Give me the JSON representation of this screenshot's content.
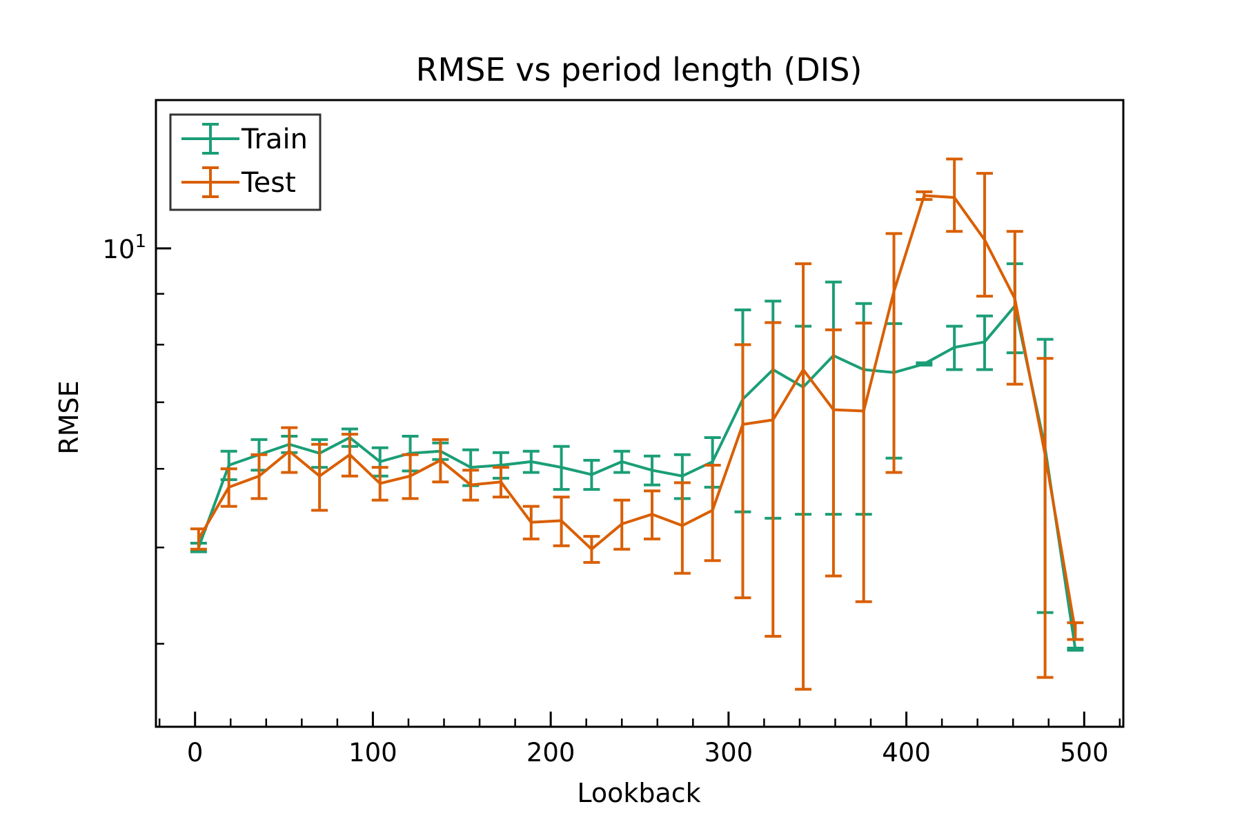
{
  "chart_data": {
    "type": "line",
    "title": "RMSE vs period length (DIS)",
    "xlabel": "Lookback",
    "ylabel": "RMSE",
    "yscale": "log",
    "xlim": [
      -22,
      522
    ],
    "ylim": [
      3.3,
      14.1
    ],
    "grid": false,
    "legend_position": "top-left",
    "x_ticks": [
      0,
      100,
      200,
      300,
      400,
      500
    ],
    "x_tick_labels": [
      "0",
      "100",
      "200",
      "300",
      "400",
      "500"
    ],
    "y_tick_labels": [
      {
        "base": "10",
        "exp": "1"
      }
    ],
    "x": [
      2,
      19,
      36,
      53,
      70,
      87,
      104,
      121,
      138,
      155,
      172,
      189,
      206,
      223,
      240,
      257,
      274,
      291,
      308,
      325,
      342,
      359,
      376,
      393,
      410,
      427,
      444,
      461,
      478,
      495
    ],
    "series": [
      {
        "name": "Train",
        "color": "#1b9e77",
        "values": [
          5.0,
          6.05,
          6.2,
          6.35,
          6.22,
          6.45,
          6.1,
          6.22,
          6.25,
          6.02,
          6.05,
          6.1,
          6.02,
          5.92,
          6.1,
          5.98,
          5.9,
          6.1,
          7.05,
          7.55,
          7.25,
          7.8,
          7.55,
          7.5,
          7.65,
          7.95,
          8.05,
          8.75,
          6.3,
          3.95
        ],
        "err_low": [
          0.05,
          0.2,
          0.22,
          0.12,
          0.2,
          0.13,
          0.2,
          0.25,
          0.12,
          0.25,
          0.18,
          0.15,
          0.3,
          0.2,
          0.15,
          0.2,
          0.3,
          0.35,
          1.62,
          2.2,
          1.85,
          2.4,
          2.15,
          1.35,
          0.02,
          0.4,
          0.5,
          0.9,
          2.0,
          0.01
        ],
        "err_high": [
          0.05,
          0.2,
          0.22,
          0.12,
          0.2,
          0.13,
          0.2,
          0.25,
          0.12,
          0.25,
          0.18,
          0.15,
          0.3,
          0.2,
          0.15,
          0.2,
          0.3,
          0.35,
          1.62,
          1.3,
          1.1,
          1.45,
          1.25,
          0.9,
          0.02,
          0.4,
          0.5,
          0.9,
          1.8,
          0.01
        ]
      },
      {
        "name": "Test",
        "color": "#d95f02",
        "values": [
          5.1,
          5.75,
          5.9,
          6.25,
          5.9,
          6.2,
          5.8,
          5.9,
          6.12,
          5.78,
          5.82,
          5.3,
          5.32,
          4.98,
          5.28,
          5.4,
          5.26,
          5.45,
          6.65,
          6.72,
          7.55,
          6.88,
          6.86,
          9.05,
          11.3,
          11.25,
          10.2,
          8.9,
          6.2,
          4.12
        ],
        "err_low": [
          0.12,
          0.25,
          0.3,
          0.3,
          0.45,
          0.3,
          0.22,
          0.3,
          0.3,
          0.2,
          0.2,
          0.2,
          0.3,
          0.15,
          0.3,
          0.3,
          0.55,
          0.6,
          2.2,
          2.65,
          3.95,
          2.2,
          2.45,
          3.1,
          0.1,
          0.85,
          1.25,
          1.6,
          2.5,
          0.08
        ],
        "err_high": [
          0.12,
          0.25,
          0.3,
          0.35,
          0.45,
          0.3,
          0.22,
          0.3,
          0.3,
          0.2,
          0.2,
          0.2,
          0.3,
          0.15,
          0.3,
          0.3,
          0.55,
          0.6,
          1.35,
          1.7,
          2.1,
          1.4,
          1.55,
          1.3,
          0.1,
          1.05,
          1.7,
          1.5,
          1.55,
          0.08
        ]
      }
    ]
  }
}
